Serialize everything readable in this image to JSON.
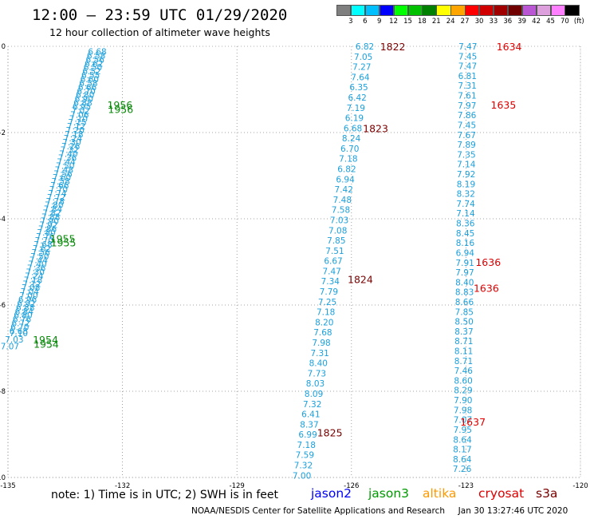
{
  "header": {
    "title": "12:00 – 23:59 UTC 01/29/2020",
    "subtitle": "12 hour collection of altimeter wave heights"
  },
  "colorbar": {
    "colors": [
      "#7f7f7f",
      "#00ffff",
      "#00bfff",
      "#0000ff",
      "#00ff00",
      "#00c000",
      "#008000",
      "#ffff00",
      "#ffa500",
      "#ff0000",
      "#d00000",
      "#a00000",
      "#700000",
      "#ba55d3",
      "#dda0dd",
      "#ff80ff",
      "#000000"
    ],
    "labels": [
      "3",
      "6",
      "9",
      "12",
      "15",
      "18",
      "21",
      "24",
      "27",
      "30",
      "33",
      "36",
      "39",
      "42",
      "45",
      "70",
      "(ft)"
    ]
  },
  "axes": {
    "lat_ticks": [
      {
        "value": 0,
        "label": "0"
      },
      {
        "value": -2,
        "label": "-2"
      },
      {
        "value": -4,
        "label": "-4"
      },
      {
        "value": -6,
        "label": "-6"
      },
      {
        "value": -8,
        "label": "-8"
      },
      {
        "value": -10,
        "label": "-10"
      }
    ],
    "lon_ticks": [
      {
        "value": -135,
        "label": "-135"
      },
      {
        "value": -132,
        "label": "-132"
      },
      {
        "value": -129,
        "label": "-129"
      },
      {
        "value": -126,
        "label": "-126"
      },
      {
        "value": -123,
        "label": "-123"
      },
      {
        "value": -120,
        "label": "-120"
      }
    ],
    "lon_range": [
      -135,
      -120
    ],
    "lat_range": [
      -10,
      0
    ],
    "grid": "dotted"
  },
  "tracks": [
    {
      "satellite": "jason2",
      "color": "#1ba0dc",
      "time_color": "#0b8a0b",
      "lon_start": -132.66,
      "lon_end": -134.72,
      "lat_start": -0.12,
      "lat_end": -6.6,
      "values": [
        "6.68",
        "6.58",
        "6.56",
        "6.62",
        "6.50",
        "6.52",
        "6.55",
        "6.60",
        "6.58",
        "6.66",
        "6.70",
        "6.80",
        "6.90",
        "6.88",
        "6.95",
        "7.02",
        "7.06",
        "7.10",
        "7.15",
        "7.12",
        "7.20",
        "7.18",
        "7.24",
        "7.30",
        "7.26",
        "7.32",
        "7.40",
        "7.36",
        "7.44",
        "7.50",
        "7.48",
        "7.56",
        "7.60",
        "7.58",
        "7.66",
        "7.70",
        "7.74",
        "7.72",
        "7.78",
        "7.80",
        "7.84",
        "7.82",
        "7.88",
        "7.90",
        "7.92",
        "7.86",
        "7.80",
        "7.76",
        "7.70",
        "7.68",
        "7.62",
        "7.56",
        "7.50",
        "7.44",
        "7.40",
        "7.36",
        "7.30",
        "7.24",
        "7.18",
        "7.12",
        "7.08",
        "7.04",
        "7.00",
        "6.96",
        "6.92",
        "6.88",
        "6.84",
        "6.80",
        "6.76",
        "6.72",
        "6.70",
        "6.68"
      ]
    },
    {
      "satellite": "jason2b",
      "color": "#1ba0dc",
      "time_color": "#0b8a0b",
      "lon_start": -134.72,
      "lon_end": -134.95,
      "lat_start": -6.65,
      "lat_end": -6.95,
      "values": [
        "7.10",
        "7.03",
        "7.07"
      ]
    },
    {
      "satellite": "jason3",
      "color": "#1ba0dc",
      "time_color": "#7a0000",
      "lon_start": -125.65,
      "lon_end": -127.3,
      "lat_start": 0.0,
      "lat_end": -9.95,
      "values": [
        "6.82",
        "7.05",
        "7.27",
        "7.64",
        "6.35",
        "6.42",
        "7.19",
        "6.19",
        "6.68",
        "8.24",
        "6.70",
        "7.18",
        "6.82",
        "6.94",
        "7.42",
        "7.48",
        "7.58",
        "7.03",
        "7.08",
        "7.85",
        "7.51",
        "6.67",
        "7.47",
        "7.34",
        "7.79",
        "7.25",
        "7.18",
        "8.20",
        "7.68",
        "7.98",
        "7.31",
        "8.40",
        "7.73",
        "8.03",
        "8.09",
        "7.32",
        "6.41",
        "8.37",
        "6.99",
        "7.18",
        "7.59",
        "7.32",
        "7.00"
      ]
    },
    {
      "satellite": "jason3b",
      "color": "#1ba0dc",
      "time_color": "#cc0000",
      "lon_start": -122.95,
      "lon_end": -123.1,
      "lat_start": 0.0,
      "lat_end": -9.8,
      "values": [
        "7.47",
        "7.45",
        "7.47",
        "6.81",
        "7.31",
        "7.61",
        "7.97",
        "7.86",
        "7.45",
        "7.67",
        "7.89",
        "7.35",
        "7.14",
        "7.92",
        "8.19",
        "8.32",
        "7.74",
        "7.14",
        "8.36",
        "8.45",
        "8.16",
        "6.94",
        "7.91",
        "7.97",
        "8.40",
        "8.83",
        "8.66",
        "7.85",
        "8.50",
        "8.37",
        "8.71",
        "8.11",
        "8.71",
        "7.46",
        "8.60",
        "8.29",
        "7.90",
        "7.98",
        "7.07",
        "7.95",
        "8.64",
        "8.17",
        "8.64",
        "7.26"
      ]
    }
  ],
  "time_labels": [
    {
      "text": "1956",
      "lon": -132.4,
      "lat": -1.35,
      "color": "#0b8a0b"
    },
    {
      "text": "1956",
      "lon": -132.38,
      "lat": -1.45,
      "color": "#0b8a0b"
    },
    {
      "text": "1955",
      "lon": -133.9,
      "lat": -4.45,
      "color": "#0b8a0b"
    },
    {
      "text": "1955",
      "lon": -133.88,
      "lat": -4.55,
      "color": "#0b8a0b"
    },
    {
      "text": "1954",
      "lon": -134.35,
      "lat": -6.8,
      "color": "#0b8a0b"
    },
    {
      "text": "1954",
      "lon": -134.33,
      "lat": -6.9,
      "color": "#0b8a0b"
    },
    {
      "text": "1822",
      "lon": -125.25,
      "lat": 0.0,
      "color": "#7a0000"
    },
    {
      "text": "1823",
      "lon": -125.7,
      "lat": -1.9,
      "color": "#7a0000"
    },
    {
      "text": "1824",
      "lon": -126.1,
      "lat": -5.4,
      "color": "#7a0000"
    },
    {
      "text": "1825",
      "lon": -126.9,
      "lat": -8.95,
      "color": "#7a0000"
    },
    {
      "text": "1634",
      "lon": -122.2,
      "lat": 0.0,
      "color": "#dd0000"
    },
    {
      "text": "1635",
      "lon": -122.35,
      "lat": -1.35,
      "color": "#dd0000"
    },
    {
      "text": "1636",
      "lon": -122.75,
      "lat": -5.0,
      "color": "#dd0000"
    },
    {
      "text": "1636",
      "lon": -122.8,
      "lat": -5.6,
      "color": "#dd0000"
    },
    {
      "text": "1637",
      "lon": -123.15,
      "lat": -8.7,
      "color": "#dd0000"
    }
  ],
  "footer": {
    "note": "note:  1) Time is in UTC;  2) SWH is in feet",
    "satellites": [
      {
        "name": "jason2",
        "color": "#0000ff"
      },
      {
        "name": "jason3",
        "color": "#009900"
      },
      {
        "name": "altika",
        "color": "#ff9900"
      },
      {
        "name": "cryosat",
        "color": "#dd0000"
      },
      {
        "name": "s3a",
        "color": "#7a0000"
      }
    ],
    "credit": "NOAA/NESDIS Center for Satellite Applications and Research     Jan 30 13:27:46 UTC 2020"
  }
}
